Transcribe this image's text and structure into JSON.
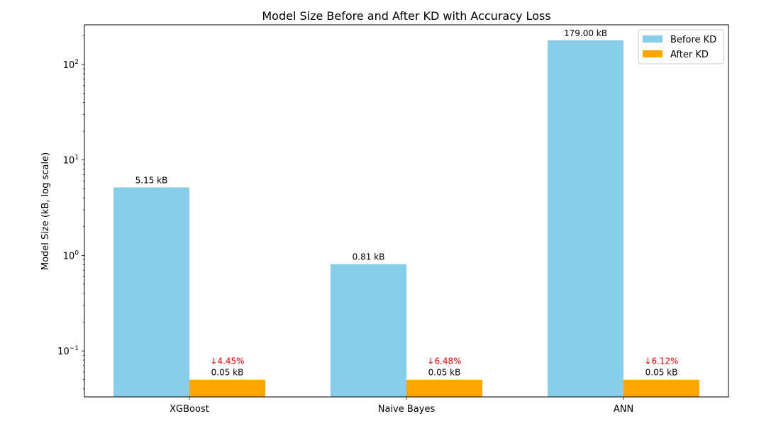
{
  "chart_data": {
    "type": "bar",
    "title": "Model Size Before and After KD with Accuracy Loss",
    "xlabel": "",
    "ylabel": "Model Size (kB, log scale)",
    "yscale": "log",
    "ylim": [
      0.033,
      260
    ],
    "yticks": [
      {
        "value": 0.1,
        "base": "10",
        "exp": "−1"
      },
      {
        "value": 1,
        "base": "10",
        "exp": "0"
      },
      {
        "value": 10,
        "base": "10",
        "exp": "1"
      },
      {
        "value": 100,
        "base": "10",
        "exp": "2"
      }
    ],
    "categories": [
      "XGBoost",
      "Naive Bayes",
      "ANN"
    ],
    "series": [
      {
        "name": "Before KD",
        "color": "#87ceeb",
        "values": [
          5.15,
          0.81,
          179.0
        ],
        "labels": [
          "5.15 kB",
          "0.81 kB",
          "179.00 kB"
        ]
      },
      {
        "name": "After KD",
        "color": "#ffa500",
        "values": [
          0.05,
          0.05,
          0.05
        ],
        "labels": [
          "0.05 kB",
          "0.05 kB",
          "0.05 kB"
        ]
      }
    ],
    "annotations": {
      "color": "#ff0000",
      "accuracy_loss": [
        "↓4.45%",
        "↓6.48%",
        "↓6.12%"
      ]
    },
    "legend_position": "top-right",
    "grid": false
  }
}
